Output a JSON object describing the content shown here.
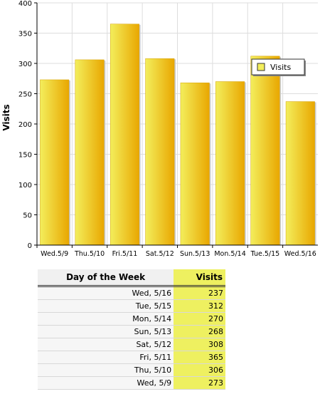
{
  "chart_data": {
    "type": "bar",
    "categories": [
      "Wed.5/9",
      "Thu.5/10",
      "Fri.5/11",
      "Sat.5/12",
      "Sun.5/13",
      "Mon.5/14",
      "Tue.5/15",
      "Wed.5/16"
    ],
    "series": [
      {
        "name": "Visits",
        "values": [
          273,
          306,
          365,
          308,
          268,
          270,
          312,
          237
        ]
      }
    ],
    "ylabel": "Visits",
    "xlabel": "",
    "ylim": [
      0,
      400
    ],
    "yticks": [
      0,
      50,
      100,
      150,
      200,
      250,
      300,
      350,
      400
    ],
    "grid": true,
    "legend": "top-right",
    "colors": {
      "bar_light": "#f3ee5c",
      "bar_dark": "#e9a700",
      "grid": "#dddddd"
    }
  },
  "table": {
    "headers": {
      "day": "Day of the Week",
      "visits": "Visits"
    },
    "rows": [
      {
        "day": "Wed, 5/16",
        "visits": "237"
      },
      {
        "day": "Tue, 5/15",
        "visits": "312"
      },
      {
        "day": "Mon, 5/14",
        "visits": "270"
      },
      {
        "day": "Sun, 5/13",
        "visits": "268"
      },
      {
        "day": "Sat, 5/12",
        "visits": "308"
      },
      {
        "day": "Fri, 5/11",
        "visits": "365"
      },
      {
        "day": "Thu, 5/10",
        "visits": "306"
      },
      {
        "day": "Wed, 5/9",
        "visits": "273"
      }
    ]
  }
}
